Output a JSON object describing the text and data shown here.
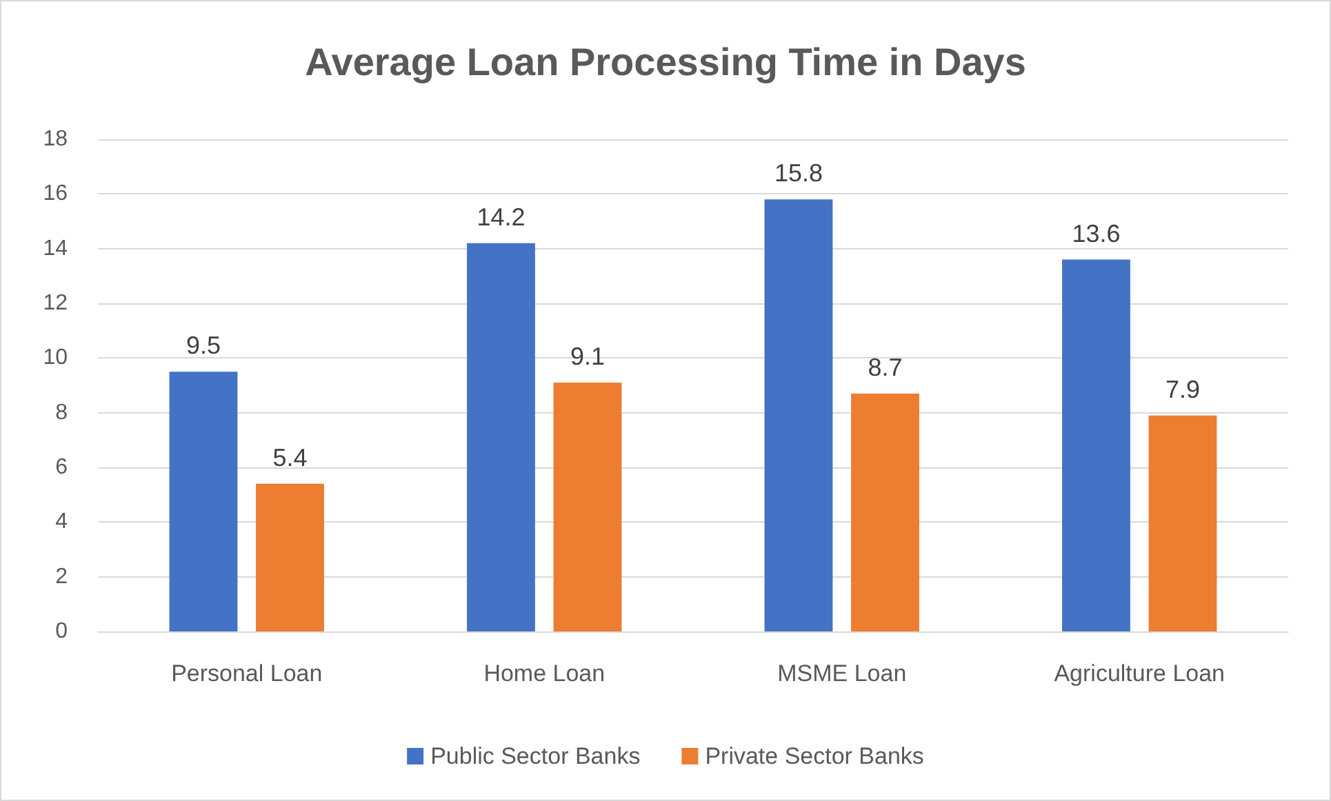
{
  "chart_data": {
    "type": "bar",
    "title": "Average Loan Processing Time in Days",
    "categories": [
      "Personal Loan",
      "Home Loan",
      "MSME Loan",
      "Agriculture Loan"
    ],
    "series": [
      {
        "name": "Public Sector Banks",
        "color": "#4472c4",
        "values": [
          9.5,
          14.2,
          15.8,
          13.6
        ]
      },
      {
        "name": "Private Sector Banks",
        "color": "#ed7d31",
        "values": [
          5.4,
          9.1,
          8.7,
          7.9
        ]
      }
    ],
    "ylim": [
      0,
      18
    ],
    "yticks": [
      0,
      2,
      4,
      6,
      8,
      10,
      12,
      14,
      16,
      18
    ],
    "grid": "y",
    "legend": "bottom",
    "data_labels": true
  }
}
